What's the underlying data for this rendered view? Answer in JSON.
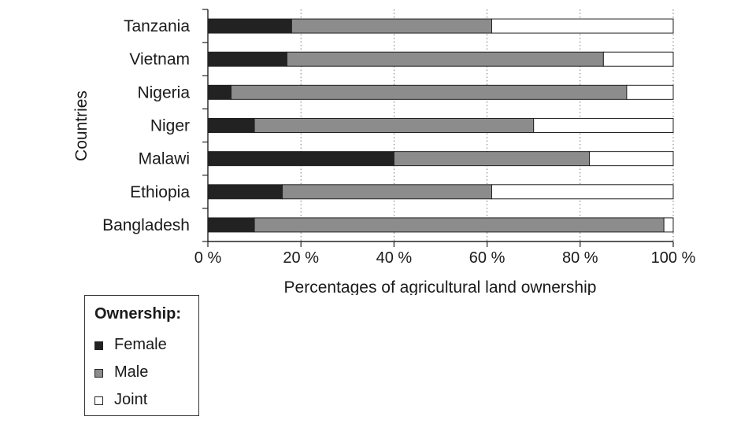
{
  "chart_data": {
    "type": "bar",
    "orientation": "horizontal",
    "stacked": true,
    "categories": [
      "Tanzania",
      "Vietnam",
      "Nigeria",
      "Niger",
      "Malawi",
      "Ethiopia",
      "Bangladesh"
    ],
    "series": [
      {
        "name": "Female",
        "values": [
          18,
          17,
          5,
          10,
          40,
          16,
          10
        ],
        "color": "#222222"
      },
      {
        "name": "Male",
        "values": [
          43,
          68,
          85,
          60,
          42,
          45,
          88
        ],
        "color": "#8c8c8c"
      },
      {
        "name": "Joint",
        "values": [
          39,
          15,
          10,
          30,
          18,
          39,
          2
        ],
        "color": "#ffffff"
      }
    ],
    "xlabel": "Percentages of agricultural land ownership",
    "ylabel": "Countries",
    "xlim": [
      0,
      100
    ],
    "xticks": [
      0,
      20,
      40,
      60,
      80,
      100
    ],
    "xtick_labels": [
      "0 %",
      "20 %",
      "40 %",
      "60 %",
      "80 %",
      "100 %"
    ],
    "grid": "vertical dashed",
    "legend_title": "Ownership:",
    "legend_position": "bottom-left"
  }
}
